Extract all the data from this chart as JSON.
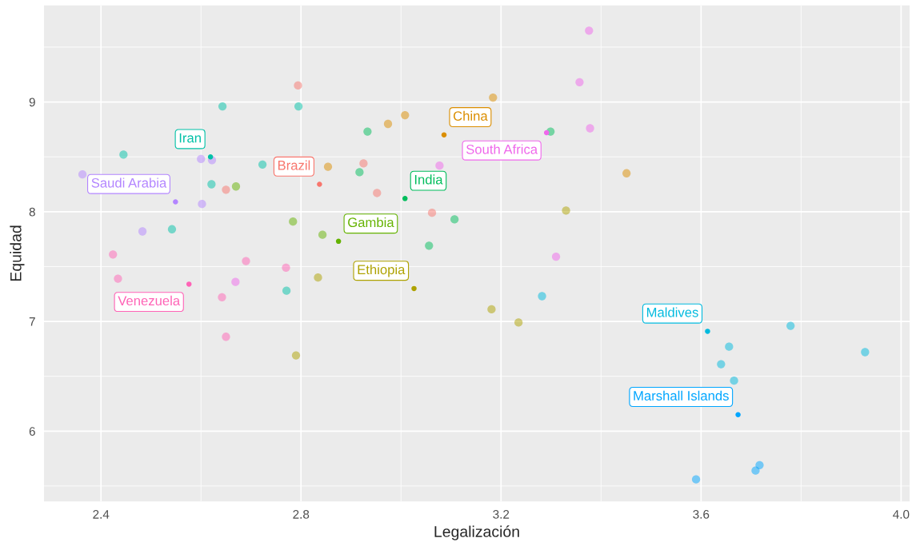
{
  "chart_data": {
    "type": "scatter",
    "xlabel": "Legalización",
    "ylabel": "Equidad",
    "xlim": [
      2.286,
      4.017
    ],
    "ylim": [
      5.36,
      9.88
    ],
    "xticks": [
      2.4,
      2.8,
      3.2,
      3.6,
      {
        "value": 4.0,
        "label": "4.0"
      }
    ],
    "yticks": [
      6,
      7,
      8,
      9
    ],
    "grid": true,
    "marker": "circle",
    "series": [
      {
        "color": "#F8766D",
        "x": [
          2.794,
          2.65,
          2.925,
          2.952,
          3.062
        ],
        "values": [
          9.15,
          8.2,
          8.44,
          8.17,
          7.99
        ]
      },
      {
        "color": "#DB8E00",
        "x": [
          2.974,
          3.008,
          3.184,
          3.451,
          2.854
        ],
        "values": [
          8.8,
          8.88,
          9.04,
          8.35,
          8.41
        ]
      },
      {
        "color": "#AEA200",
        "x": [
          3.33,
          3.181,
          3.235,
          2.834,
          2.79
        ],
        "values": [
          8.01,
          7.11,
          6.99,
          7.4,
          6.69
        ]
      },
      {
        "color": "#64B200",
        "x": [
          2.67,
          2.784,
          2.843
        ],
        "values": [
          8.23,
          7.91,
          7.79
        ]
      },
      {
        "color": "#00BD5C",
        "x": [
          2.933,
          2.917,
          3.056,
          3.107,
          3.299
        ],
        "values": [
          8.73,
          8.36,
          7.69,
          7.93,
          8.73
        ]
      },
      {
        "color": "#00C1A7",
        "x": [
          2.445,
          2.643,
          2.621,
          2.723,
          2.795,
          2.771,
          2.542
        ],
        "values": [
          8.52,
          8.96,
          8.25,
          8.43,
          8.96,
          7.28,
          7.84
        ]
      },
      {
        "color": "#00BADE",
        "x": [
          3.656,
          3.64,
          3.666,
          3.282,
          3.779,
          3.928
        ],
        "values": [
          6.77,
          6.61,
          6.46,
          7.23,
          6.96,
          6.72
        ]
      },
      {
        "color": "#00A6FF",
        "x": [
          3.59,
          3.717,
          3.709
        ],
        "values": [
          5.56,
          5.69,
          5.64
        ]
      },
      {
        "color": "#B385FF",
        "x": [
          2.363,
          2.483,
          2.602,
          2.622,
          2.6
        ],
        "values": [
          8.34,
          7.82,
          8.07,
          8.47,
          8.48
        ]
      },
      {
        "color": "#EF67EB",
        "x": [
          3.376,
          3.357,
          3.378,
          3.077,
          3.31,
          2.669
        ],
        "values": [
          9.65,
          9.18,
          8.76,
          8.42,
          7.59,
          7.36
        ]
      },
      {
        "color": "#FF63B6",
        "x": [
          2.424,
          2.434,
          2.642,
          2.65,
          2.69,
          2.77
        ],
        "values": [
          7.61,
          7.39,
          7.22,
          6.86,
          7.55,
          7.49
        ]
      }
    ],
    "annotations": [
      {
        "text": "Brazil",
        "x": 2.837,
        "y": 8.25
      },
      {
        "text": "China",
        "x": 3.086,
        "y": 8.7
      },
      {
        "text": "Ethiopia",
        "x": 3.026,
        "y": 7.3
      },
      {
        "text": "Gambia",
        "x": 2.875,
        "y": 7.73
      },
      {
        "text": "India",
        "x": 3.008,
        "y": 8.12
      },
      {
        "text": "Iran",
        "x": 2.619,
        "y": 8.5
      },
      {
        "text": "Maldives",
        "x": 3.613,
        "y": 6.91
      },
      {
        "text": "Marshall Islands",
        "x": 3.674,
        "y": 6.15
      },
      {
        "text": "Saudi Arabia",
        "x": 2.549,
        "y": 8.09
      },
      {
        "text": "South Africa",
        "x": 3.291,
        "y": 8.72
      },
      {
        "text": "Venezuela",
        "x": 2.576,
        "y": 7.34
      }
    ]
  }
}
